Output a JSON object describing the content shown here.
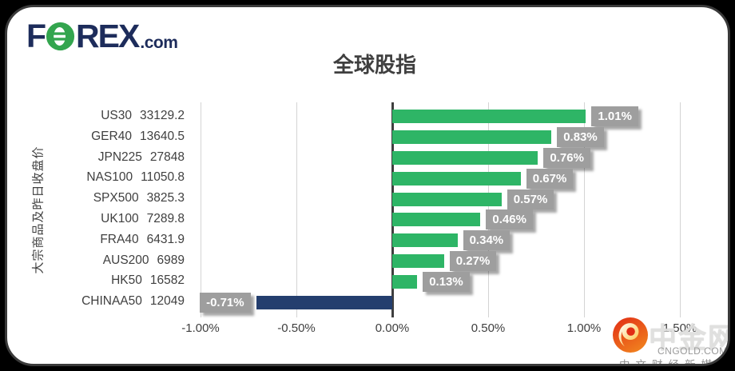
{
  "brand": {
    "f": "F",
    "rex": "REX",
    "dotcom": ".com",
    "navy": "#1d2c5b",
    "green": "#33a54e"
  },
  "title": "全球股指",
  "chart_data": {
    "type": "bar",
    "orientation": "horizontal",
    "title": "全球股指",
    "ylabel": "大宗商品及昨日收盘价",
    "categories": [
      "US30",
      "GER40",
      "JPN225",
      "NAS100",
      "SPX500",
      "UK100",
      "FRA40",
      "AUS200",
      "HK50",
      "CHINAA50"
    ],
    "close_prices": [
      "33129.2",
      "13640.5",
      "27848",
      "11050.8",
      "3825.3",
      "7289.8",
      "6431.9",
      "6989",
      "16582",
      "12049"
    ],
    "values": [
      1.01,
      0.83,
      0.76,
      0.67,
      0.57,
      0.46,
      0.34,
      0.27,
      0.13,
      -0.71
    ],
    "value_labels": [
      "1.01%",
      "0.83%",
      "0.76%",
      "0.67%",
      "0.57%",
      "0.46%",
      "0.34%",
      "0.27%",
      "0.13%",
      "-0.71%"
    ],
    "x_ticks": [
      -1.0,
      -0.5,
      0.0,
      0.5,
      1.0,
      1.5
    ],
    "x_tick_labels": [
      "-1.00%",
      "-0.50%",
      "0.00%",
      "0.50%",
      "1.00%",
      "1.50%"
    ],
    "xlim": [
      -1.05,
      1.57
    ],
    "grid": true,
    "positive_color": "#2eb566",
    "negative_color": "#243e6e",
    "label_box_color": "#9e9e9e",
    "grid_color": "#d4d4d4",
    "axis_color": "#3f3f3f"
  },
  "watermark": {
    "site_name": "中金网",
    "domain": "CNGOLD.COM.CN",
    "tagline": "中文财经新媒体"
  }
}
